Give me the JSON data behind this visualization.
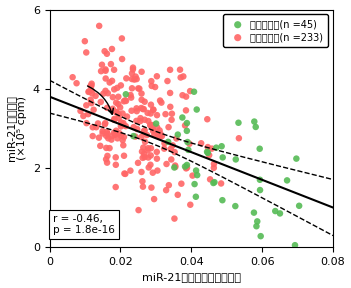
{
  "xlabel": "miR-21のアデニル化の割合",
  "ylabel": "miR-21の発現量（×10⁵ cpm）",
  "ylabel_line1": "miR-21の発現量",
  "ylabel_line2": "(×10⁵ cpm)",
  "xlim": [
    0,
    0.08
  ],
  "ylim": [
    0,
    6
  ],
  "xticks": [
    0,
    0.02,
    0.04,
    0.06,
    0.08
  ],
  "yticks": [
    0,
    2,
    4,
    6
  ],
  "normal_color": "#55bb55",
  "cancer_color": "#ff6666",
  "normal_label": "正常細胞　（n =45）",
  "cancer_label": "がん細胞　（n =233）",
  "r_value": -0.46,
  "p_value": "1.8e-16",
  "background_color": "#ffffff",
  "seed": 42
}
